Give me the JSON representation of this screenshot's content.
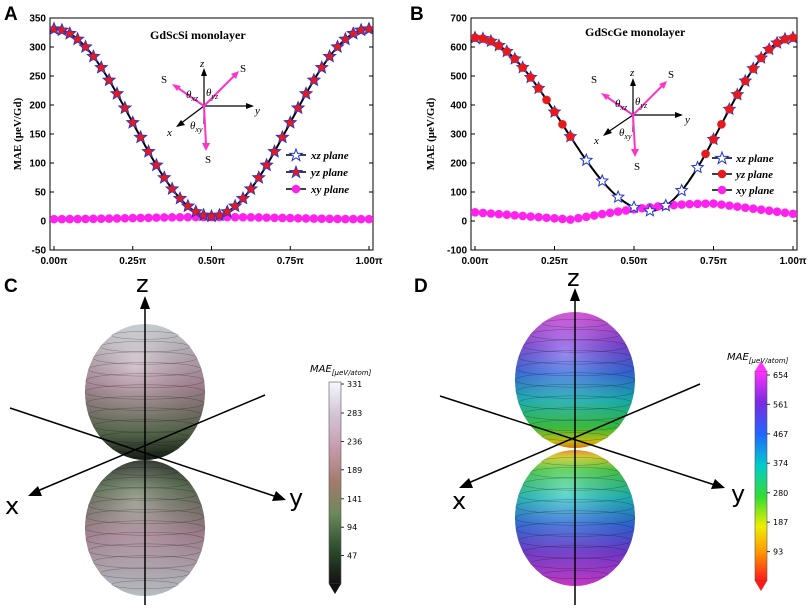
{
  "panels": {
    "a": "A",
    "b": "B",
    "c": "C",
    "d": "D"
  },
  "colors": {
    "xz": "#2233cc",
    "yz": "#e41a1c",
    "xy": "#ff22ee",
    "arrow": "#ff33cc"
  },
  "chart_data": [
    {
      "type": "line",
      "title": "GdScSi monolayer",
      "xlabel": "",
      "ylabel": "MAE (μeV/Gd)",
      "xlim": [
        0,
        1.0
      ],
      "ylim": [
        -50,
        350
      ],
      "yticks": [
        "350",
        "300",
        "250",
        "200",
        "150",
        "100",
        "50",
        "0",
        "-50"
      ],
      "ytick_values": [
        350,
        300,
        250,
        200,
        150,
        100,
        50,
        0,
        -50
      ],
      "xticks": [
        "0.00π",
        "0.25π",
        "0.50π",
        "0.75π",
        "1.00π"
      ],
      "xtick_values": [
        0,
        0.25,
        0.5,
        0.75,
        1.0
      ],
      "legend": [
        "xz plane",
        "yz plane",
        "xy plane"
      ],
      "series": [
        {
          "name": "xz plane",
          "marker": "star",
          "max": 331,
          "min": 8,
          "minAt": 0.5
        },
        {
          "name": "yz plane",
          "marker": "star-filled",
          "max": 331,
          "min": 8,
          "minAt": 0.5
        },
        {
          "name": "xy plane",
          "marker": "circle",
          "base": 5,
          "amp": 3
        }
      ],
      "inset": {
        "z": "z",
        "y": "y",
        "x": "x",
        "S": "S",
        "theta": "θ",
        "sub_xz": "xz",
        "sub_yz": "yz",
        "sub_xy": "xy"
      }
    },
    {
      "type": "line",
      "title": "GdScGe monolayer",
      "xlabel": "",
      "ylabel": "MAE (μeV/Gd)",
      "xlim": [
        0,
        1.0
      ],
      "ylim": [
        -100,
        700
      ],
      "yticks": [
        "700",
        "600",
        "500",
        "400",
        "300",
        "200",
        "100",
        "0",
        "-100"
      ],
      "ytick_values": [
        700,
        600,
        500,
        400,
        300,
        200,
        100,
        0,
        -100
      ],
      "xticks": [
        "0.00π",
        "0.25π",
        "0.50π",
        "0.75π",
        "1.00π"
      ],
      "xtick_values": [
        0,
        0.25,
        0.5,
        0.75,
        1.0
      ],
      "legend": [
        "xz plane",
        "yz plane",
        "xy plane"
      ],
      "series": [
        {
          "name": "xz plane",
          "marker": "star",
          "max": 632,
          "min": 35,
          "minAt": 0.55
        },
        {
          "name": "yz plane",
          "marker": "circle-filled",
          "max": 632,
          "min": 35,
          "minAt": 0.55
        },
        {
          "name": "xy plane",
          "marker": "circle",
          "values_hint": "≈30 at 0, ≈5 at 0.3π, ≈60 at 0.75π, ≈25 at 1.0π"
        }
      ],
      "inset": {
        "z": "z",
        "y": "y",
        "x": "x",
        "S": "S",
        "theta": "θ",
        "sub_xz": "xz",
        "sub_yz": "yz",
        "sub_xy": "xy"
      }
    },
    {
      "type": "heatmap",
      "title": "",
      "axes": {
        "x": "x",
        "y": "y",
        "z": "z"
      },
      "colorbar_title": "MAE",
      "colorbar_unit": "[μeV/atom]",
      "colorbar_ticks": [
        "331",
        "283",
        "236",
        "189",
        "141",
        "94",
        "47"
      ],
      "colorbar_values": [
        331,
        283,
        236,
        189,
        141,
        94,
        47
      ],
      "colormap": [
        "#111111",
        "#2f4f2f",
        "#6b8a5a",
        "#a27a6a",
        "#c79bb0",
        "#d5c8d8",
        "#f4f8ff"
      ]
    },
    {
      "type": "heatmap",
      "title": "",
      "axes": {
        "x": "x",
        "y": "y",
        "z": "z"
      },
      "colorbar_title": "MAE",
      "colorbar_unit": "[μeV/atom]",
      "colorbar_ticks": [
        "654",
        "561",
        "467",
        "374",
        "280",
        "187",
        "93"
      ],
      "colorbar_values": [
        654,
        561,
        467,
        374,
        280,
        187,
        93
      ],
      "colormap": [
        "#ff1a1a",
        "#ff9900",
        "#eeee00",
        "#33dd33",
        "#00cccc",
        "#2266ff",
        "#7a2ae0",
        "#ff33ff"
      ]
    }
  ]
}
